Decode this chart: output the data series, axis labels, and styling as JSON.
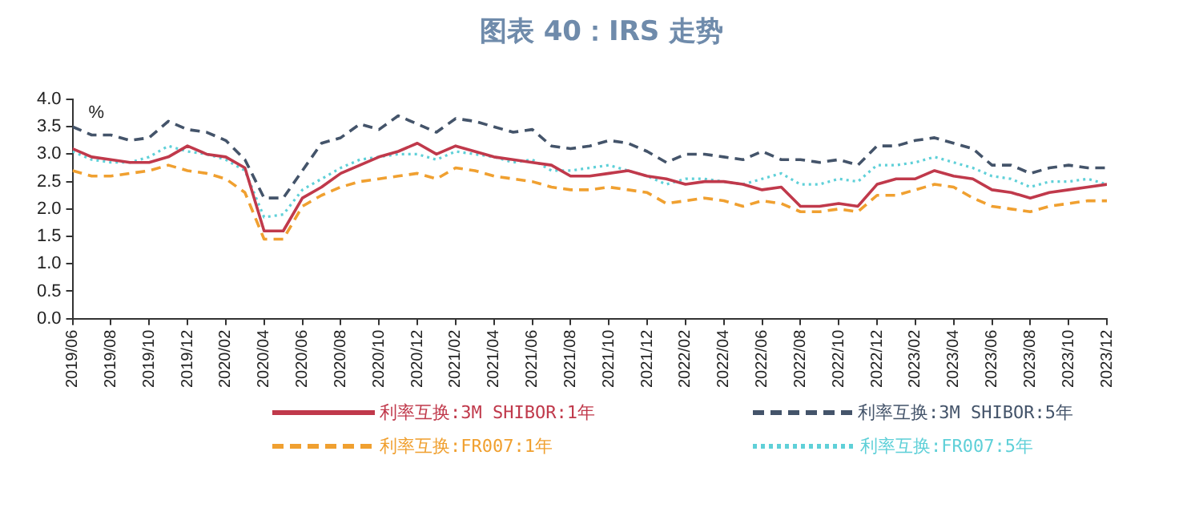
{
  "chart_data": {
    "type": "line",
    "title": "图表 40：IRS 走势",
    "ylabel": "%",
    "x": [
      "2019-06",
      "2019-07",
      "2019-08",
      "2019-09",
      "2019-10",
      "2019-11",
      "2019-12",
      "2020-01",
      "2020-02",
      "2020-03",
      "2020-04",
      "2020-05",
      "2020-06",
      "2020-07",
      "2020-08",
      "2020-09",
      "2020-10",
      "2020-11",
      "2020-12",
      "2021-01",
      "2021-02",
      "2021-03",
      "2021-04",
      "2021-05",
      "2021-06",
      "2021-07",
      "2021-08",
      "2021-09",
      "2021-10",
      "2021-11",
      "2021-12",
      "2022-01",
      "2022-02",
      "2022-03",
      "2022-04",
      "2022-05",
      "2022-06",
      "2022-07",
      "2022-08",
      "2022-09",
      "2022-10",
      "2022-11",
      "2022-12",
      "2023-01",
      "2023-02",
      "2023-03",
      "2023-04",
      "2023-05",
      "2023-06",
      "2023-07",
      "2023-08",
      "2023-09",
      "2023-10",
      "2023-11",
      "2023-12"
    ],
    "series": [
      {
        "name": "利率互换:3M SHIBOR:1年",
        "color": "#c0394b",
        "line_style": "solid",
        "values": [
          3.1,
          2.95,
          2.9,
          2.85,
          2.85,
          2.95,
          3.15,
          3.0,
          2.95,
          2.75,
          1.6,
          1.6,
          2.2,
          2.4,
          2.65,
          2.8,
          2.95,
          3.05,
          3.2,
          3.0,
          3.15,
          3.05,
          2.95,
          2.9,
          2.85,
          2.8,
          2.6,
          2.6,
          2.65,
          2.7,
          2.6,
          2.55,
          2.45,
          2.5,
          2.5,
          2.45,
          2.35,
          2.4,
          2.05,
          2.05,
          2.1,
          2.05,
          2.45,
          2.55,
          2.55,
          2.7,
          2.6,
          2.55,
          2.35,
          2.3,
          2.2,
          2.3,
          2.35,
          2.4,
          2.45
        ]
      },
      {
        "name": "利率互换:3M SHIBOR:5年",
        "color": "#44546a",
        "line_style": "dashed",
        "values": [
          3.5,
          3.35,
          3.35,
          3.25,
          3.3,
          3.6,
          3.45,
          3.4,
          3.25,
          2.9,
          2.2,
          2.2,
          2.7,
          3.2,
          3.3,
          3.55,
          3.45,
          3.7,
          3.55,
          3.4,
          3.65,
          3.6,
          3.5,
          3.4,
          3.45,
          3.15,
          3.1,
          3.15,
          3.25,
          3.2,
          3.05,
          2.85,
          3.0,
          3.0,
          2.95,
          2.9,
          3.05,
          2.9,
          2.9,
          2.85,
          2.9,
          2.8,
          3.15,
          3.15,
          3.25,
          3.3,
          3.2,
          3.1,
          2.8,
          2.8,
          2.65,
          2.75,
          2.8,
          2.75,
          2.75
        ]
      },
      {
        "name": "利率互换:FR007:1年",
        "color": "#f0a030",
        "line_style": "dashed",
        "values": [
          2.7,
          2.6,
          2.6,
          2.65,
          2.7,
          2.8,
          2.7,
          2.65,
          2.55,
          2.3,
          1.45,
          1.45,
          2.05,
          2.25,
          2.4,
          2.5,
          2.55,
          2.6,
          2.65,
          2.55,
          2.75,
          2.7,
          2.6,
          2.55,
          2.5,
          2.4,
          2.35,
          2.35,
          2.4,
          2.35,
          2.3,
          2.1,
          2.15,
          2.2,
          2.15,
          2.05,
          2.15,
          2.1,
          1.95,
          1.95,
          2.0,
          1.95,
          2.25,
          2.25,
          2.35,
          2.45,
          2.4,
          2.2,
          2.05,
          2.0,
          1.95,
          2.05,
          2.1,
          2.15,
          2.15
        ]
      },
      {
        "name": "利率互换:FR007:5年",
        "color": "#5fd0d8",
        "line_style": "dotted",
        "values": [
          3.05,
          2.9,
          2.85,
          2.85,
          2.95,
          3.15,
          3.05,
          3.0,
          2.9,
          2.7,
          1.85,
          1.9,
          2.35,
          2.55,
          2.75,
          2.9,
          2.95,
          3.0,
          3.0,
          2.9,
          3.05,
          3.0,
          2.95,
          2.85,
          2.9,
          2.7,
          2.7,
          2.75,
          2.8,
          2.7,
          2.6,
          2.45,
          2.55,
          2.55,
          2.5,
          2.45,
          2.55,
          2.65,
          2.45,
          2.45,
          2.55,
          2.5,
          2.8,
          2.8,
          2.85,
          2.95,
          2.85,
          2.75,
          2.6,
          2.55,
          2.4,
          2.5,
          2.5,
          2.55,
          2.45
        ]
      }
    ],
    "xlim": [
      "2019-06",
      "2023-12"
    ],
    "xticks": [
      {
        "value": "2019-06",
        "label": "2019/06"
      },
      {
        "value": "2019-08",
        "label": "2019/08"
      },
      {
        "value": "2019-10",
        "label": "2019/10"
      },
      {
        "value": "2019-12",
        "label": "2019/12"
      },
      {
        "value": "2020-02",
        "label": "2020/02"
      },
      {
        "value": "2020-04",
        "label": "2020/04"
      },
      {
        "value": "2020-06",
        "label": "2020/06"
      },
      {
        "value": "2020-08",
        "label": "2020/08"
      },
      {
        "value": "2020-10",
        "label": "2020/10"
      },
      {
        "value": "2020-12",
        "label": "2020/12"
      },
      {
        "value": "2021-02",
        "label": "2021/02"
      },
      {
        "value": "2021-04",
        "label": "2021/04"
      },
      {
        "value": "2021-06",
        "label": "2021/06"
      },
      {
        "value": "2021-08",
        "label": "2021/08"
      },
      {
        "value": "2021-10",
        "label": "2021/10"
      },
      {
        "value": "2021-12",
        "label": "2021/12"
      },
      {
        "value": "2022-02",
        "label": "2022/02"
      },
      {
        "value": "2022-04",
        "label": "2022/04"
      },
      {
        "value": "2022-06",
        "label": "2022/06"
      },
      {
        "value": "2022-08",
        "label": "2022/08"
      },
      {
        "value": "2022-10",
        "label": "2022/10"
      },
      {
        "value": "2022-12",
        "label": "2022/12"
      },
      {
        "value": "2023-02",
        "label": "2023/02"
      },
      {
        "value": "2023-04",
        "label": "2023/04"
      },
      {
        "value": "2023-06",
        "label": "2023/06"
      },
      {
        "value": "2023-08",
        "label": "2023/08"
      },
      {
        "value": "2023-10",
        "label": "2023/10"
      },
      {
        "value": "2023-12",
        "label": "2023/12"
      }
    ],
    "ylim": [
      0,
      4
    ],
    "yticks": [
      {
        "value": 0,
        "label": "0.0"
      },
      {
        "value": 0.5,
        "label": "0.5"
      },
      {
        "value": 1,
        "label": "1.0"
      },
      {
        "value": 1.5,
        "label": "1.5"
      },
      {
        "value": 2,
        "label": "2.0"
      },
      {
        "value": 2.5,
        "label": "2.5"
      },
      {
        "value": 3,
        "label": "3.0"
      },
      {
        "value": 3.5,
        "label": "3.5"
      },
      {
        "value": 4,
        "label": "4.0"
      }
    ],
    "grid": false,
    "legend": "bottom",
    "marker": "none"
  }
}
